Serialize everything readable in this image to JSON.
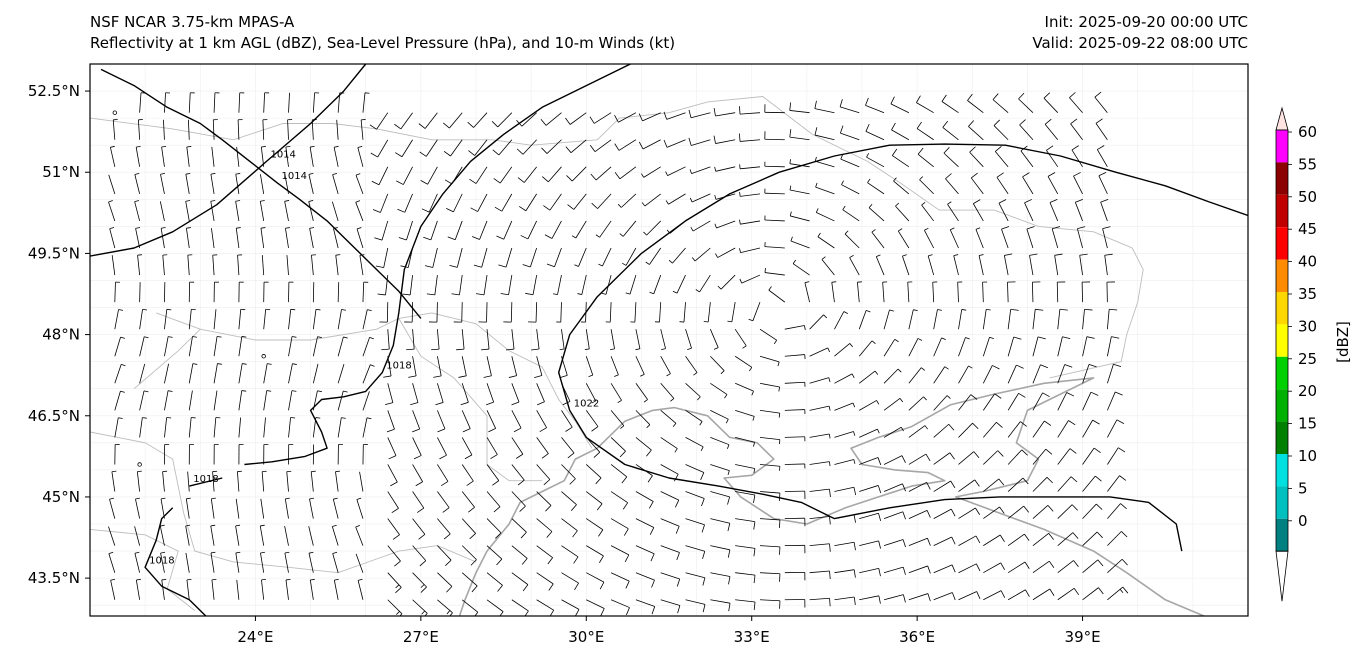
{
  "header": {
    "model": "NSF NCAR 3.75-km MPAS-A",
    "fields": "Reflectivity at 1 km AGL (dBZ), Sea-Level Pressure (hPa), and 10-m Winds (kt)",
    "init": "Init: 2025-09-20 00:00 UTC",
    "valid": "Valid: 2025-09-22 08:00 UTC"
  },
  "map": {
    "lon_range": [
      21,
      42
    ],
    "lat_range": [
      42.8,
      53
    ],
    "lon_ticks": [
      {
        "value": 24,
        "label": "24°E"
      },
      {
        "value": 27,
        "label": "27°E"
      },
      {
        "value": 30,
        "label": "30°E"
      },
      {
        "value": 33,
        "label": "33°E"
      },
      {
        "value": 36,
        "label": "36°E"
      },
      {
        "value": 39,
        "label": "39°E"
      }
    ],
    "lat_ticks": [
      {
        "value": 52.5,
        "label": "52.5°N"
      },
      {
        "value": 51,
        "label": "51°N"
      },
      {
        "value": 49.5,
        "label": "49.5°N"
      },
      {
        "value": 48,
        "label": "48°N"
      },
      {
        "value": 46.5,
        "label": "46.5°N"
      },
      {
        "value": 45,
        "label": "45°N"
      },
      {
        "value": 43.5,
        "label": "43.5°N"
      }
    ],
    "isobars": [
      {
        "label": "1014",
        "points": [
          [
            21.2,
            52.9
          ],
          [
            21.8,
            52.6
          ],
          [
            22.4,
            52.2
          ],
          [
            23.0,
            51.9
          ],
          [
            23.4,
            51.6
          ],
          [
            23.9,
            51.2
          ],
          [
            24.4,
            50.8
          ],
          [
            24.8,
            50.5
          ],
          [
            25.3,
            50.1
          ],
          [
            25.7,
            49.7
          ],
          [
            26.2,
            49.2
          ],
          [
            26.6,
            48.8
          ],
          [
            27.0,
            48.3
          ]
        ]
      },
      {
        "label": "1014",
        "points": [
          [
            21.0,
            49.45
          ],
          [
            21.8,
            49.6
          ],
          [
            22.5,
            49.9
          ],
          [
            23.3,
            50.4
          ],
          [
            24.2,
            51.2
          ],
          [
            25.0,
            51.9
          ],
          [
            25.6,
            52.5
          ],
          [
            26.0,
            53.0
          ]
        ]
      },
      {
        "label": "1018",
        "points": [
          [
            30.8,
            53.0
          ],
          [
            30.0,
            52.6
          ],
          [
            29.2,
            52.2
          ],
          [
            28.5,
            51.7
          ],
          [
            27.9,
            51.2
          ],
          [
            27.4,
            50.6
          ],
          [
            27.0,
            50.0
          ],
          [
            26.7,
            49.2
          ],
          [
            26.6,
            48.4
          ],
          [
            26.5,
            47.8
          ],
          [
            26.3,
            47.3
          ],
          [
            26.0,
            46.95
          ],
          [
            25.6,
            46.85
          ],
          [
            25.2,
            46.8
          ],
          [
            25.0,
            46.6
          ],
          [
            25.2,
            46.2
          ],
          [
            25.3,
            45.9
          ],
          [
            24.9,
            45.75
          ],
          [
            24.3,
            45.65
          ],
          [
            23.8,
            45.6
          ]
        ]
      },
      {
        "label": "1018",
        "points": [
          [
            23.4,
            45.35
          ],
          [
            22.8,
            45.2
          ]
        ]
      },
      {
        "label": "1018",
        "points": [
          [
            22.5,
            44.8
          ],
          [
            22.3,
            44.6
          ],
          [
            22.2,
            44.2
          ],
          [
            22.0,
            43.7
          ],
          [
            22.3,
            43.35
          ],
          [
            22.8,
            43.1
          ],
          [
            23.1,
            42.8
          ]
        ]
      },
      {
        "label": "1022",
        "points": [
          [
            42.0,
            50.2
          ],
          [
            41.3,
            50.45
          ],
          [
            40.5,
            50.75
          ],
          [
            39.6,
            51.0
          ],
          [
            38.6,
            51.3
          ],
          [
            37.6,
            51.5
          ],
          [
            36.5,
            51.52
          ],
          [
            35.5,
            51.5
          ],
          [
            34.5,
            51.3
          ],
          [
            33.5,
            51.0
          ],
          [
            32.6,
            50.6
          ],
          [
            31.8,
            50.1
          ],
          [
            31.0,
            49.5
          ],
          [
            30.2,
            48.7
          ],
          [
            29.7,
            48.0
          ],
          [
            29.5,
            47.3
          ],
          [
            29.7,
            46.6
          ],
          [
            30.0,
            46.1
          ],
          [
            30.7,
            45.6
          ],
          [
            31.5,
            45.35
          ],
          [
            32.4,
            45.2
          ],
          [
            33.2,
            45.05
          ],
          [
            33.9,
            44.9
          ],
          [
            34.5,
            44.6
          ],
          [
            35.5,
            44.8
          ],
          [
            36.5,
            44.95
          ],
          [
            37.5,
            45.0
          ],
          [
            38.5,
            45.0
          ],
          [
            39.5,
            45.0
          ],
          [
            40.2,
            44.9
          ],
          [
            40.7,
            44.5
          ],
          [
            40.8,
            44.0
          ]
        ]
      }
    ],
    "coast": [
      [
        [
          28.2,
          44.0
        ],
        [
          28.6,
          44.5
        ],
        [
          28.8,
          44.9
        ],
        [
          29.2,
          45.1
        ],
        [
          29.6,
          45.3
        ],
        [
          29.8,
          45.7
        ],
        [
          30.2,
          45.9
        ],
        [
          30.7,
          46.4
        ],
        [
          31.2,
          46.6
        ],
        [
          31.6,
          46.65
        ],
        [
          32.2,
          46.5
        ],
        [
          32.6,
          46.1
        ],
        [
          33.1,
          46.0
        ],
        [
          33.4,
          45.7
        ],
        [
          33.0,
          45.4
        ],
        [
          32.5,
          45.35
        ],
        [
          32.8,
          45.0
        ],
        [
          33.4,
          44.6
        ],
        [
          34.0,
          44.5
        ],
        [
          34.7,
          44.8
        ],
        [
          35.3,
          45.0
        ],
        [
          35.9,
          45.2
        ],
        [
          36.5,
          45.3
        ],
        [
          36.2,
          45.45
        ],
        [
          35.6,
          45.5
        ],
        [
          35.0,
          45.6
        ],
        [
          34.8,
          45.9
        ],
        [
          35.3,
          46.1
        ],
        [
          35.9,
          46.3
        ],
        [
          36.6,
          46.7
        ],
        [
          37.4,
          46.9
        ],
        [
          38.3,
          47.1
        ],
        [
          39.2,
          47.2
        ],
        [
          38.6,
          46.9
        ],
        [
          38.0,
          46.6
        ],
        [
          37.8,
          46.0
        ],
        [
          38.2,
          45.7
        ],
        [
          38.0,
          45.3
        ],
        [
          37.2,
          45.1
        ],
        [
          36.7,
          45.0
        ],
        [
          37.5,
          44.7
        ],
        [
          38.3,
          44.4
        ],
        [
          39.2,
          44.0
        ],
        [
          39.8,
          43.6
        ],
        [
          40.5,
          43.1
        ],
        [
          41.2,
          42.8
        ]
      ],
      [
        [
          28.2,
          44.0
        ],
        [
          28.0,
          43.6
        ],
        [
          27.8,
          43.1
        ],
        [
          27.7,
          42.8
        ]
      ]
    ],
    "borders": [
      [
        [
          21.0,
          52.0
        ],
        [
          22.5,
          51.8
        ],
        [
          23.6,
          51.6
        ],
        [
          24.5,
          51.9
        ],
        [
          25.4,
          51.9
        ],
        [
          26.2,
          51.8
        ],
        [
          27.2,
          51.6
        ],
        [
          28.3,
          51.6
        ],
        [
          29.0,
          51.5
        ],
        [
          30.2,
          51.6
        ],
        [
          30.6,
          52.0
        ],
        [
          31.5,
          52.1
        ],
        [
          32.2,
          52.3
        ],
        [
          33.2,
          52.4
        ],
        [
          34.1,
          51.7
        ],
        [
          35.1,
          51.2
        ],
        [
          35.7,
          50.8
        ],
        [
          36.4,
          50.3
        ],
        [
          37.4,
          50.3
        ],
        [
          38.2,
          50.0
        ],
        [
          39.2,
          49.9
        ],
        [
          39.9,
          49.6
        ],
        [
          40.1,
          49.2
        ],
        [
          40.0,
          48.6
        ],
        [
          39.8,
          48.0
        ],
        [
          39.7,
          47.5
        ],
        [
          38.4,
          47.2
        ]
      ],
      [
        [
          22.2,
          48.4
        ],
        [
          23.0,
          48.1
        ],
        [
          24.0,
          47.9
        ],
        [
          25.0,
          47.9
        ],
        [
          26.2,
          48.1
        ],
        [
          26.6,
          48.3
        ],
        [
          27.2,
          48.4
        ],
        [
          28.0,
          48.2
        ],
        [
          28.6,
          47.7
        ],
        [
          29.2,
          47.4
        ],
        [
          29.5,
          46.8
        ],
        [
          29.8,
          46.4
        ],
        [
          30.1,
          45.9
        ]
      ],
      [
        [
          26.6,
          48.3
        ],
        [
          27.0,
          47.6
        ],
        [
          27.6,
          47.2
        ],
        [
          28.2,
          46.5
        ],
        [
          28.2,
          45.6
        ],
        [
          28.6,
          45.3
        ],
        [
          29.2,
          45.3
        ]
      ],
      [
        [
          21.8,
          47.0
        ],
        [
          22.6,
          47.7
        ],
        [
          23.0,
          48.1
        ]
      ],
      [
        [
          21.0,
          46.2
        ],
        [
          22.0,
          46.0
        ],
        [
          22.5,
          45.7
        ],
        [
          22.7,
          44.7
        ],
        [
          22.9,
          44.0
        ],
        [
          23.6,
          43.8
        ],
        [
          24.6,
          43.7
        ],
        [
          25.5,
          43.6
        ],
        [
          26.6,
          44.0
        ],
        [
          27.3,
          44.1
        ],
        [
          28.0,
          43.8
        ]
      ],
      [
        [
          21.0,
          44.4
        ],
        [
          22.0,
          44.3
        ],
        [
          22.6,
          44.0
        ],
        [
          22.4,
          43.3
        ],
        [
          22.9,
          42.9
        ]
      ]
    ],
    "barb_grid": {
      "cols": 41,
      "rows": 19,
      "lon_step": 0.45,
      "lat_step": 0.5,
      "lon_start": 21.45,
      "lat_start": 43.1
    }
  },
  "colorbar": {
    "label": "[dBZ]",
    "ticks": [
      "0",
      "5",
      "10",
      "15",
      "20",
      "25",
      "30",
      "35",
      "40",
      "45",
      "50",
      "55",
      "60"
    ],
    "colors": [
      "#ffffff",
      "#008080",
      "#00bfbf",
      "#00e0e0",
      "#008000",
      "#00b000",
      "#00d000",
      "#ffff00",
      "#ffd700",
      "#ff8c00",
      "#ff0000",
      "#c00000",
      "#8b0000",
      "#ff00ff",
      "#ffe4e1"
    ]
  }
}
